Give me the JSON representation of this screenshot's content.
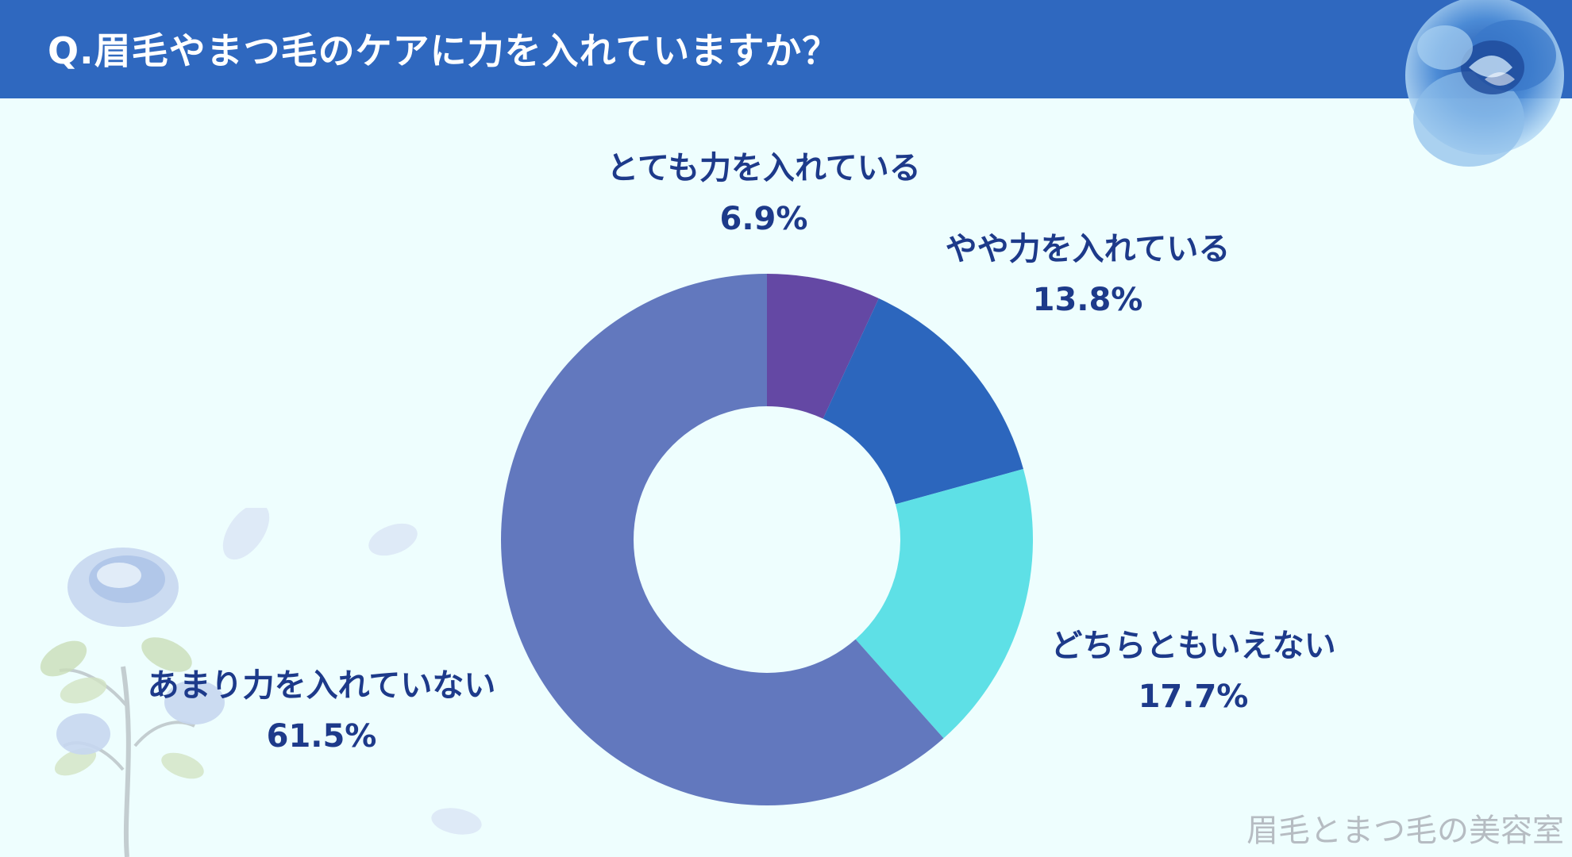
{
  "header": {
    "title": "Q.眉毛やまつ毛のケアに力を入れていますか？"
  },
  "watermark": "眉毛とまつ毛の美容室",
  "colors": {
    "header_bg": "#2f68bf",
    "background": "#eefefe",
    "label_text": "#1d3a8a"
  },
  "decorations": [
    "blue-rose-icon",
    "rose-stem-icon"
  ],
  "chart_data": {
    "type": "pie",
    "donut": true,
    "title": "",
    "slices": [
      {
        "label": "とても力を入れている",
        "value": 6.9,
        "value_label": "6.9%",
        "color": "#6448a4"
      },
      {
        "label": "やや力を入れている",
        "value": 13.8,
        "value_label": "13.8%",
        "color": "#2c66bd"
      },
      {
        "label": "どちらともいえない",
        "value": 17.7,
        "value_label": "17.7%",
        "color": "#5ee0e6"
      },
      {
        "label": "あまり力を入れていない",
        "value": 61.5,
        "value_label": "61.5%",
        "color": "#6278be"
      }
    ]
  }
}
